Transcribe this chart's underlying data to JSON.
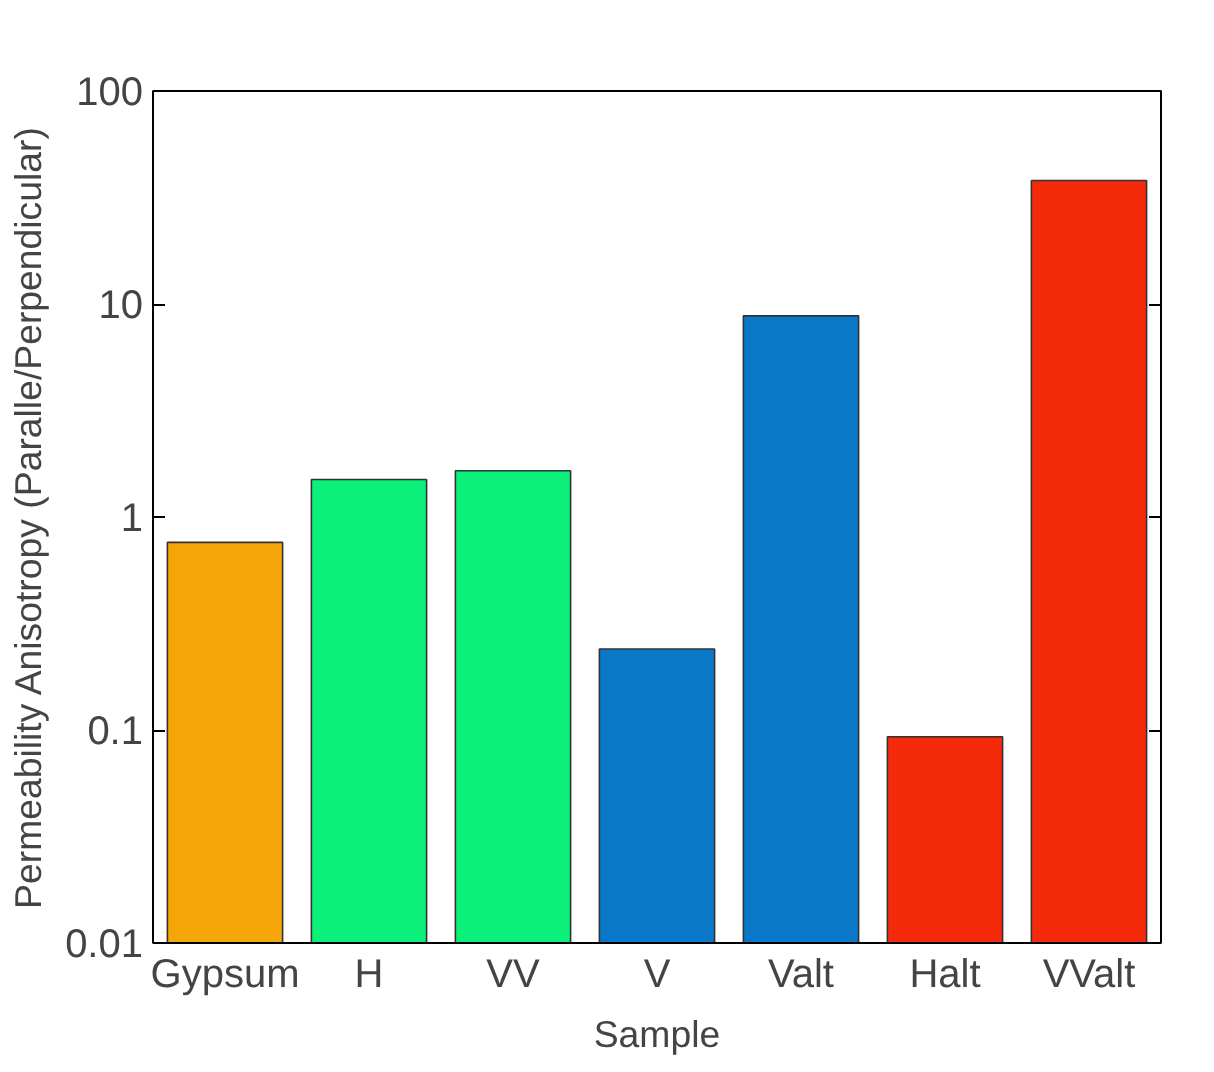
{
  "chart_data": {
    "type": "bar",
    "xlabel": "Sample",
    "ylabel": "Permeability Anisotropy (Paralle/Perpendicular)",
    "categories": [
      "Gypsum",
      "H",
      "VV",
      "V",
      "Valt",
      "Halt",
      "VValt"
    ],
    "values": [
      0.76,
      1.5,
      1.65,
      0.24,
      8.8,
      0.093,
      38
    ],
    "colors": [
      "#f5a70a",
      "#0af07a",
      "#0af07a",
      "#0a78c8",
      "#0a78c8",
      "#f52a0a",
      "#f52a0a"
    ],
    "log": true,
    "ylim": [
      0.01,
      100
    ],
    "yticks": [
      0.01,
      0.1,
      1,
      10,
      100
    ],
    "grid": false
  }
}
